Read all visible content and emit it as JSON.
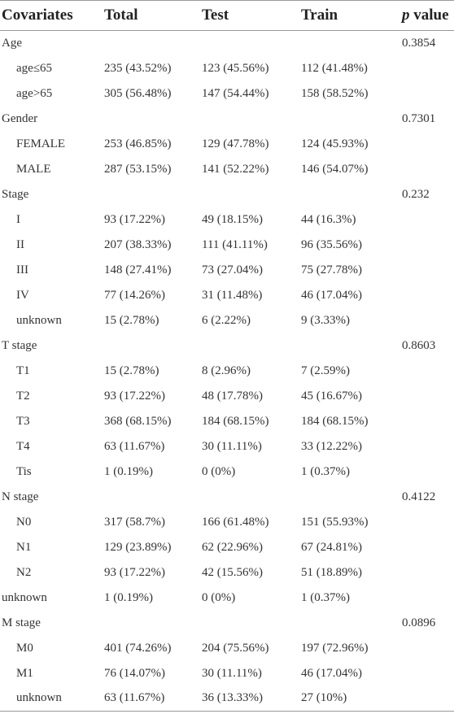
{
  "header": {
    "columns": [
      "Covariates",
      "Total",
      "Test",
      "Train",
      "p value"
    ]
  },
  "table": {
    "rows": [
      [
        "Age",
        null,
        null,
        null,
        0.3854
      ],
      [
        "age≤65",
        "235 (43.52%)",
        "123 (45.56%)",
        "112 (41.48%)",
        null
      ],
      [
        "age>65",
        "305 (56.48%)",
        "147 (54.44%)",
        "158 (58.52%)",
        null
      ],
      [
        "Gender",
        null,
        null,
        null,
        0.7301
      ],
      [
        "FEMALE",
        "253 (46.85%)",
        "129 (47.78%)",
        "124 (45.93%)",
        null
      ],
      [
        "MALE",
        "287 (53.15%)",
        "141 (52.22%)",
        "146 (54.07%)",
        null
      ],
      [
        "Stage",
        null,
        null,
        null,
        0.232
      ],
      [
        "I",
        "93 (17.22%)",
        "49 (18.15%)",
        "44 (16.3%)",
        null
      ],
      [
        "II",
        "207 (38.33%)",
        "111 (41.11%)",
        "96 (35.56%)",
        null
      ],
      [
        "III",
        "148 (27.41%)",
        "73 (27.04%)",
        "75 (27.78%)",
        null
      ],
      [
        "IV",
        "77 (14.26%)",
        "31 (11.48%)",
        "46 (17.04%)",
        null
      ],
      [
        "unknown",
        "15 (2.78%)",
        "6 (2.22%)",
        "9 (3.33%)",
        null
      ],
      [
        "T stage",
        null,
        null,
        null,
        0.8603
      ],
      [
        "T1",
        "15 (2.78%)",
        "8 (2.96%)",
        "7 (2.59%)",
        null
      ],
      [
        "T2",
        "93 (17.22%)",
        "48 (17.78%)",
        "45 (16.67%)",
        null
      ],
      [
        "T3",
        "368 (68.15%)",
        "184 (68.15%)",
        "184 (68.15%)",
        null
      ],
      [
        "T4",
        "63 (11.67%)",
        "30 (11.11%)",
        "33 (12.22%)",
        null
      ],
      [
        "Tis",
        "1 (0.19%)",
        "0 (0%)",
        "1 (0.37%)",
        null
      ],
      [
        "N stage",
        null,
        null,
        null,
        0.4122
      ],
      [
        "N0",
        "317 (58.7%)",
        "166 (61.48%)",
        "151 (55.93%)",
        null
      ],
      [
        "N1",
        "129 (23.89%)",
        "62 (22.96%)",
        "67 (24.81%)",
        null
      ],
      [
        "N2",
        "93 (17.22%)",
        "42 (15.56%)",
        "51 (18.89%)",
        null
      ],
      [
        "unknown",
        "1 (0.19%)",
        "0 (0%)",
        "1 (0.37%)",
        null
      ],
      [
        "M stage",
        null,
        null,
        null,
        0.0896
      ],
      [
        "M0",
        "401 (74.26%)",
        "204 (75.56%)",
        "197 (72.96%)",
        null
      ],
      [
        "M1",
        "76 (14.07%)",
        "30 (11.11%)",
        "46 (17.04%)",
        null
      ],
      [
        "unknown",
        "63 (11.67%)",
        "36 (13.33%)",
        "27 (10%)",
        null
      ]
    ]
  }
}
